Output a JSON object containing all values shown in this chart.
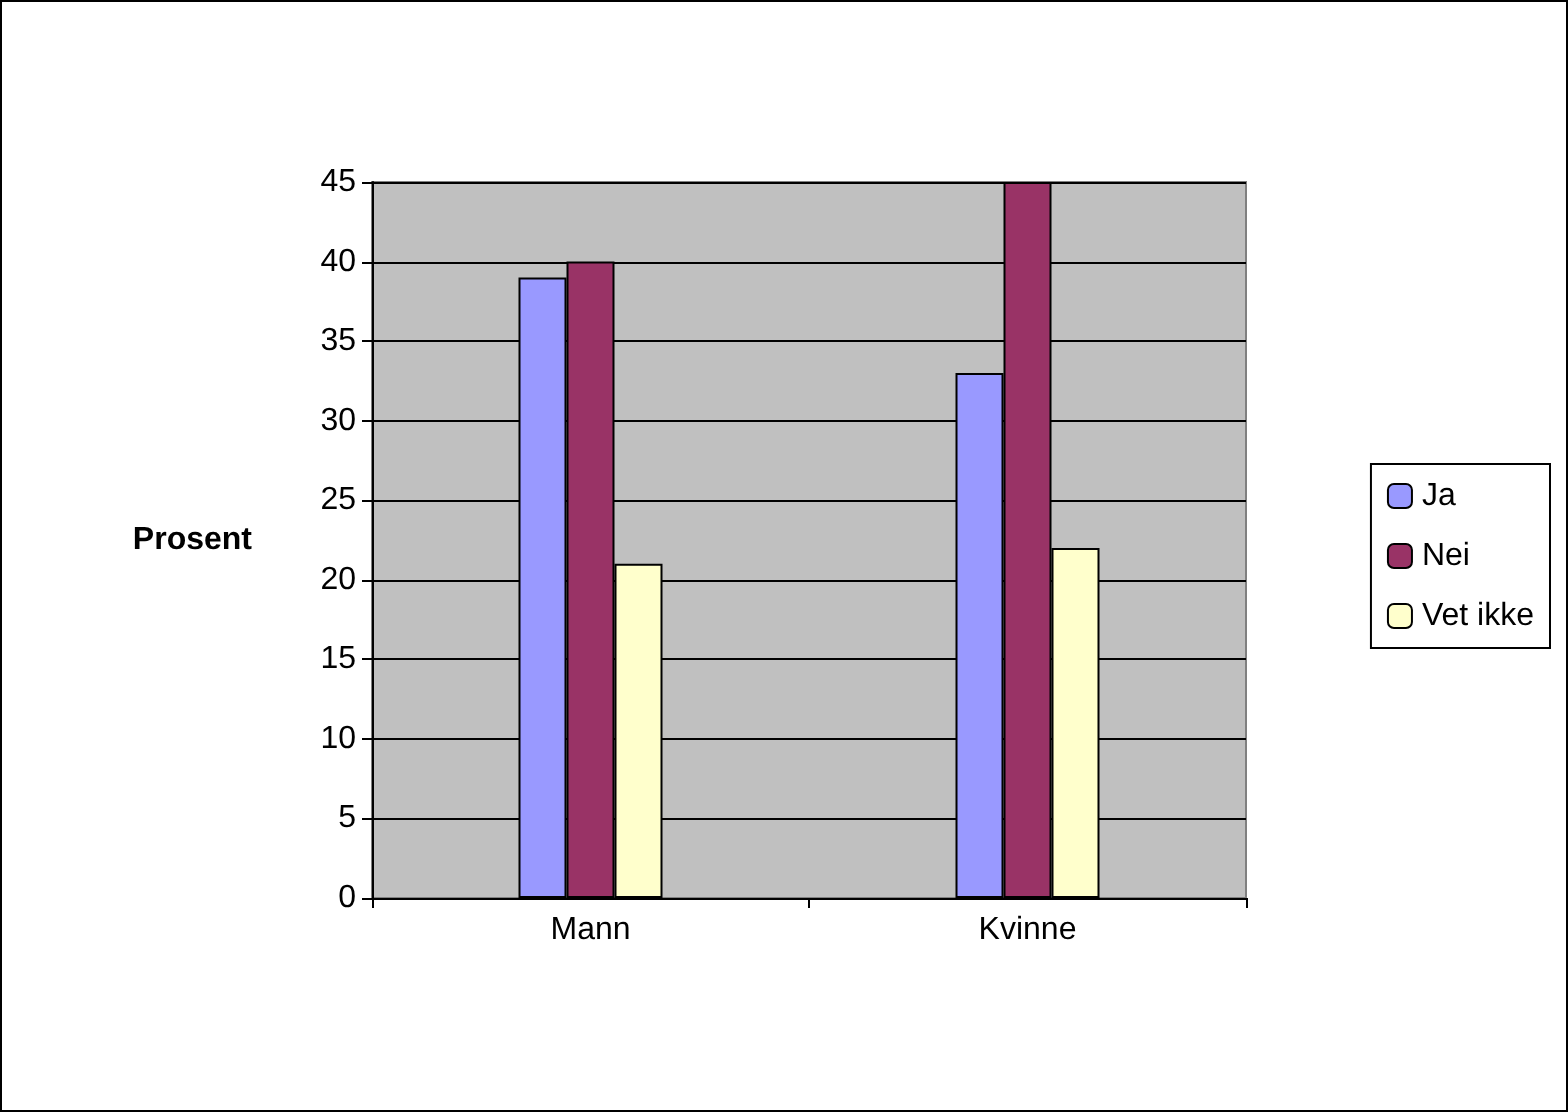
{
  "chart_data": {
    "type": "bar",
    "ylabel": "Prosent",
    "categories": [
      "Mann",
      "Kvinne"
    ],
    "series": [
      {
        "name": "Ja",
        "color": "#9999ff",
        "values": [
          39,
          33
        ]
      },
      {
        "name": "Nei",
        "color": "#993366",
        "values": [
          40,
          45
        ]
      },
      {
        "name": "Vet ikke",
        "color": "#ffffcc",
        "values": [
          21,
          22
        ]
      }
    ],
    "ylim": [
      0,
      45
    ],
    "yticks": [
      0,
      5,
      10,
      15,
      20,
      25,
      30,
      35,
      40,
      45
    ],
    "grid": "y",
    "legend": "right"
  }
}
